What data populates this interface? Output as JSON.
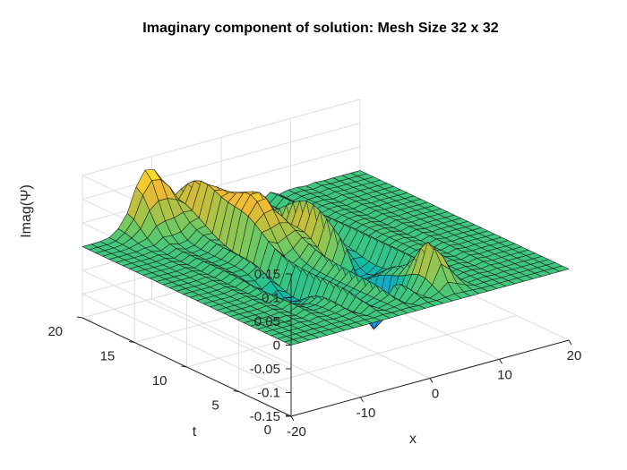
{
  "chart_data": {
    "type": "surface",
    "title": "Imaginary component of solution: Mesh Size 32 x 32",
    "xlabel": "x",
    "ylabel": "t",
    "zlabel": "Imag(Ψ)",
    "xlim": [
      -20,
      20
    ],
    "ylim": [
      0,
      20
    ],
    "zlim": [
      -0.15,
      0.15
    ],
    "x_ticks": [
      -20,
      -10,
      0,
      10,
      20
    ],
    "y_ticks": [
      0,
      5,
      10,
      15,
      20
    ],
    "z_ticks": [
      -0.15,
      -0.1,
      -0.05,
      0,
      0.05,
      0.1,
      0.15
    ],
    "x_tick_labels": [
      "-20",
      "-10",
      "0",
      "10",
      "20"
    ],
    "y_tick_labels": [
      "0",
      "5",
      "10",
      "15",
      "20"
    ],
    "z_tick_labels": [
      "-0.15",
      "-0.1",
      "-0.05",
      "0",
      "0.05",
      "0.1",
      "0.15"
    ],
    "grid": true,
    "colormap": "parula",
    "colormap_stops": [
      "#3e26a8",
      "#4748f3",
      "#2f83f8",
      "#11a6d5",
      "#12bba2",
      "#3fc77e",
      "#7ac95d",
      "#b7c13f",
      "#eeb935",
      "#f9e024",
      "#f9fb0e"
    ],
    "mesh_size": [
      32,
      32
    ],
    "features": [
      {
        "x": -10.5,
        "t": 20,
        "amp": 0.13,
        "sigma_x": 3.0,
        "sigma_t": 1.8,
        "note": "ridge along back edge"
      },
      {
        "x": -5,
        "t": 18,
        "amp": 0.09,
        "sigma_x": 2.5,
        "sigma_t": 2.5
      },
      {
        "x": -4,
        "t": 14,
        "amp": 0.12,
        "sigma_x": 2.0,
        "sigma_t": 2.5
      },
      {
        "x": -9,
        "t": 8,
        "amp": -0.05,
        "sigma_x": 2.0,
        "sigma_t": 2.0
      },
      {
        "x": 0,
        "t": 12,
        "amp": 0.08,
        "sigma_x": 1.5,
        "sigma_t": 3.0
      },
      {
        "x": 1,
        "t": 6,
        "amp": -0.15,
        "sigma_x": 1.2,
        "sigma_t": 1.5
      },
      {
        "x": 5,
        "t": 3,
        "amp": 0.09,
        "sigma_x": 1.5,
        "sigma_t": 1.5
      },
      {
        "x": 4,
        "t": 9,
        "amp": -0.06,
        "sigma_x": 1.5,
        "sigma_t": 2.0
      }
    ],
    "oscillation": {
      "x_period": 3.2,
      "t_decay_start": 0
    }
  }
}
